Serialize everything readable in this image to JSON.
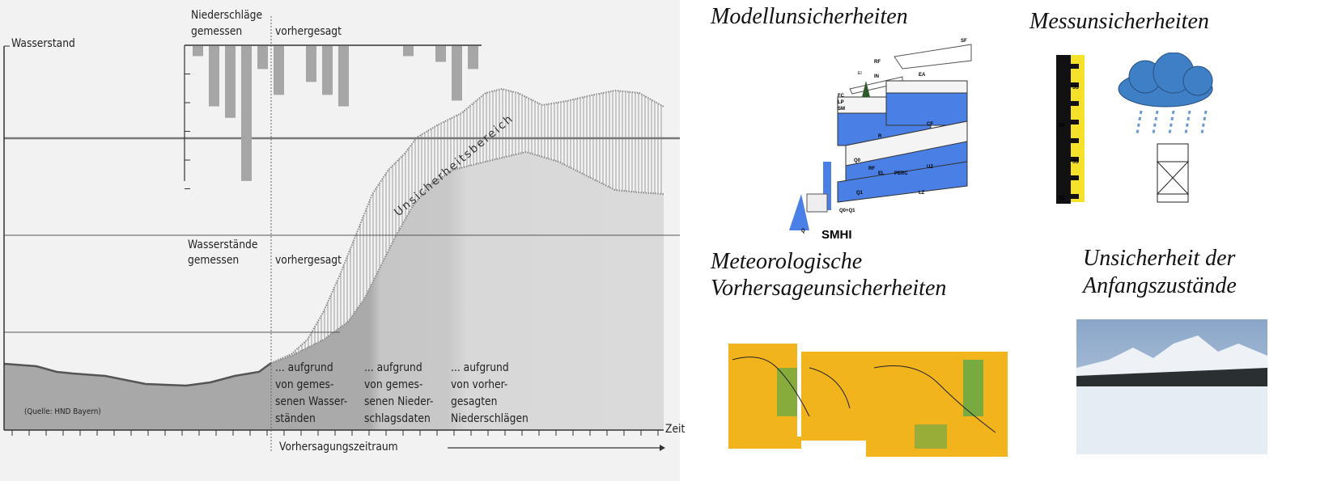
{
  "left_diagram": {
    "y_axis_label": "Wasserstand",
    "x_axis_label": "Zeit",
    "precip_header_line1": "Niederschläge",
    "precip_measured": "gemessen",
    "precip_forecast": "vorhergesagt",
    "precip_values": [
      0.35,
      2.1,
      2.5,
      4.7,
      0.8,
      1.7,
      1.25,
      1.7,
      2.1,
      0.35,
      0.55,
      1.9,
      0.8
    ],
    "uncertainty_label": "Unsicherheitsbereich",
    "levels_header_line1": "Wasserstände",
    "levels_measured": "gemessen",
    "levels_forecast": "vorhergesagt",
    "reason1": [
      "... aufgrund",
      "von gemes-",
      "senen Wasser-",
      "ständen"
    ],
    "reason2": [
      "... aufgrund",
      "von gemes-",
      "senen Nieder-",
      "schlagsdaten"
    ],
    "reason3": [
      "... aufgrund",
      "von vorher-",
      "gesagten",
      "Niederschlägen"
    ],
    "source": "(Quelle: HND Bayern)",
    "forecast_period": "Vorhersagungszeitraum"
  },
  "panels": {
    "model": {
      "title": "Modellunsicherheiten",
      "logo": "SMHI",
      "labels": [
        "SF",
        "RF",
        "EI",
        "IN",
        "EA",
        "FC",
        "LP",
        "SM",
        "CF",
        "R",
        "UZ",
        "Q0",
        "RF",
        "EL",
        "PERC",
        "LZ",
        "Q1",
        "Q0+Q1",
        "Q"
      ]
    },
    "measurement": {
      "title": "Messunsicherheiten",
      "ruler_marks": [
        "55",
        "54",
        "53",
        "52"
      ]
    },
    "meteo": {
      "title_line1": "Meteorologische",
      "title_line2": "Vorhersageunsicherheiten"
    },
    "initial": {
      "title_line1": "Unsicherheit der",
      "title_line2": "Anfangszustände"
    }
  },
  "colors": {
    "background": "#f2f2f2",
    "bars": "#a6a6a6",
    "model_blue": "#4a7fe6",
    "ruler_yellow": "#f5e12a",
    "cloud": "#3f7fc6"
  }
}
